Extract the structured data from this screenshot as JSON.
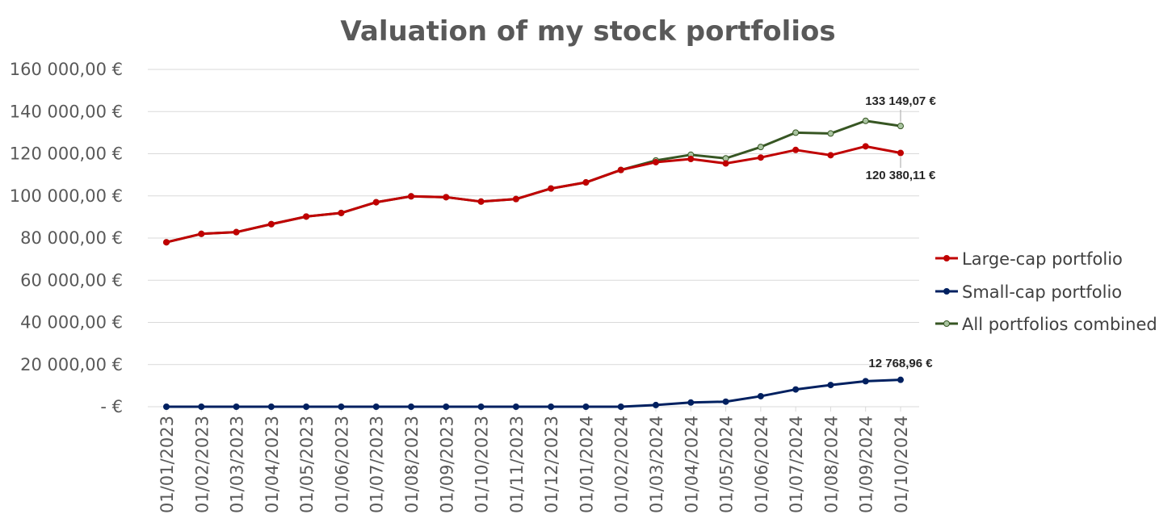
{
  "chart_data": {
    "type": "line",
    "title": "Valuation of my stock portfolios",
    "xlabel": "",
    "ylabel": "",
    "ylim": [
      0,
      160000
    ],
    "y_ticks": [
      {
        "value": 0,
        "label": "-  €"
      },
      {
        "value": 20000,
        "label": "20 000,00 €"
      },
      {
        "value": 40000,
        "label": "40 000,00 €"
      },
      {
        "value": 60000,
        "label": "60 000,00 €"
      },
      {
        "value": 80000,
        "label": "80 000,00 €"
      },
      {
        "value": 100000,
        "label": "100 000,00 €"
      },
      {
        "value": 120000,
        "label": "120 000,00 €"
      },
      {
        "value": 140000,
        "label": "140 000,00 €"
      },
      {
        "value": 160000,
        "label": "160 000,00 €"
      }
    ],
    "grid": true,
    "legend_position": "right",
    "categories": [
      "01/01/2023",
      "01/02/2023",
      "01/03/2023",
      "01/04/2023",
      "01/05/2023",
      "01/06/2023",
      "01/07/2023",
      "01/08/2023",
      "01/09/2023",
      "01/10/2023",
      "01/11/2023",
      "01/12/2023",
      "01/01/2024",
      "01/02/2024",
      "01/03/2024",
      "01/04/2024",
      "01/05/2024",
      "01/06/2024",
      "01/07/2024",
      "01/08/2024",
      "01/09/2024",
      "01/10/2024"
    ],
    "series": [
      {
        "name": "Large-cap portfolio",
        "color": "#c00000",
        "marker_fill": "#c00000",
        "values": [
          78000,
          82000,
          82800,
          86600,
          90200,
          91900,
          97000,
          99800,
          99400,
          97300,
          98500,
          103500,
          106400,
          112300,
          116000,
          117500,
          115400,
          118200,
          121800,
          119300,
          123500,
          120380.11
        ],
        "end_label": "120 380,11 €"
      },
      {
        "name": "Small-cap portfolio",
        "color": "#002060",
        "marker_fill": "#002060",
        "values": [
          0,
          0,
          0,
          0,
          0,
          0,
          0,
          0,
          0,
          0,
          0,
          0,
          0,
          0,
          800,
          2000,
          2400,
          5000,
          8200,
          10300,
          12100,
          12768.96
        ],
        "end_label": "12 768,96 €"
      },
      {
        "name": "All portfolios combined",
        "color": "#375623",
        "marker_fill": "#a9c4a0",
        "values": [
          78000,
          82000,
          82800,
          86600,
          90200,
          91900,
          97000,
          99800,
          99400,
          97300,
          98500,
          103500,
          106400,
          112300,
          116800,
          119500,
          117800,
          123200,
          130000,
          129600,
          135600,
          133149.07
        ],
        "end_label": "133 149,07 €"
      }
    ]
  }
}
